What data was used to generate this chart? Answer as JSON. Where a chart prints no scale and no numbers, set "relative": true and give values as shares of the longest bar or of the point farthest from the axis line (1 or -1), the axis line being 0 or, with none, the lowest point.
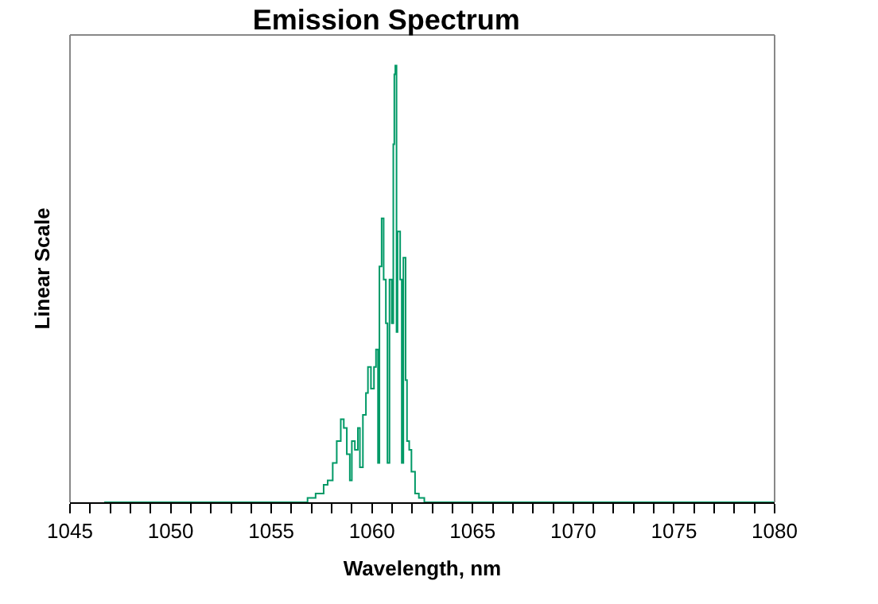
{
  "chart_data": {
    "type": "step",
    "title": "Emission Spectrum",
    "xlabel": "Wavelength, nm",
    "ylabel": "Linear Scale",
    "relative": true,
    "grid": false,
    "marker": "none",
    "line_style": "solid",
    "xlim": [
      1045,
      1080
    ],
    "xticks": [
      1045,
      {
        "value": 1046,
        "label": null
      },
      {
        "value": 1047,
        "label": null
      },
      {
        "value": 1048,
        "label": null
      },
      {
        "value": 1049,
        "label": null
      },
      1050,
      {
        "value": 1051,
        "label": null
      },
      {
        "value": 1052,
        "label": null
      },
      {
        "value": 1053,
        "label": null
      },
      {
        "value": 1054,
        "label": null
      },
      1055,
      {
        "value": 1056,
        "label": null
      },
      {
        "value": 1057,
        "label": null
      },
      {
        "value": 1058,
        "label": null
      },
      {
        "value": 1059,
        "label": null
      },
      1060,
      {
        "value": 1061,
        "label": null
      },
      {
        "value": 1062,
        "label": null
      },
      {
        "value": 1063,
        "label": null
      },
      {
        "value": 1064,
        "label": null
      },
      1065,
      {
        "value": 1066,
        "label": null
      },
      {
        "value": 1067,
        "label": null
      },
      {
        "value": 1068,
        "label": null
      },
      {
        "value": 1069,
        "label": null
      },
      1070,
      {
        "value": 1071,
        "label": null
      },
      {
        "value": 1072,
        "label": null
      },
      {
        "value": 1073,
        "label": null
      },
      {
        "value": 1074,
        "label": null
      },
      1075,
      {
        "value": 1076,
        "label": null
      },
      {
        "value": 1077,
        "label": null
      },
      {
        "value": 1078,
        "label": null
      },
      {
        "value": 1079,
        "label": null
      },
      1080
    ],
    "tick_labels": "x",
    "series": [
      {
        "color": "#009966",
        "x": [
          1046.7,
          1054.9,
          1056.8,
          1057.2,
          1057.6,
          1057.8,
          1058.05,
          1058.25,
          1058.45,
          1058.6,
          1058.75,
          1058.9,
          1059.0,
          1059.15,
          1059.3,
          1059.4,
          1059.55,
          1059.7,
          1059.8,
          1059.95,
          1060.1,
          1060.2,
          1060.3,
          1060.37,
          1060.48,
          1060.58,
          1060.69,
          1060.77,
          1060.87,
          1060.98,
          1061.06,
          1061.11,
          1061.16,
          1061.22,
          1061.27,
          1061.4,
          1061.48,
          1061.56,
          1061.67,
          1061.74,
          1061.85,
          1061.96,
          1062.14,
          1062.33,
          1062.6,
          1063.1,
          1080
        ],
        "values": [
          0,
          0,
          0.01,
          0.02,
          0.04,
          0.05,
          0.09,
          0.14,
          0.19,
          0.17,
          0.11,
          0.05,
          0.14,
          0.12,
          0.17,
          0.08,
          0.2,
          0.25,
          0.31,
          0.26,
          0.31,
          0.35,
          0.09,
          0.54,
          0.65,
          0.51,
          0.41,
          0.09,
          0.51,
          0.41,
          0.82,
          0.98,
          1,
          0.39,
          0.62,
          0.51,
          0.09,
          0.56,
          0.28,
          0.14,
          0.12,
          0.07,
          0.02,
          0.01,
          0,
          0,
          0
        ]
      }
    ]
  }
}
